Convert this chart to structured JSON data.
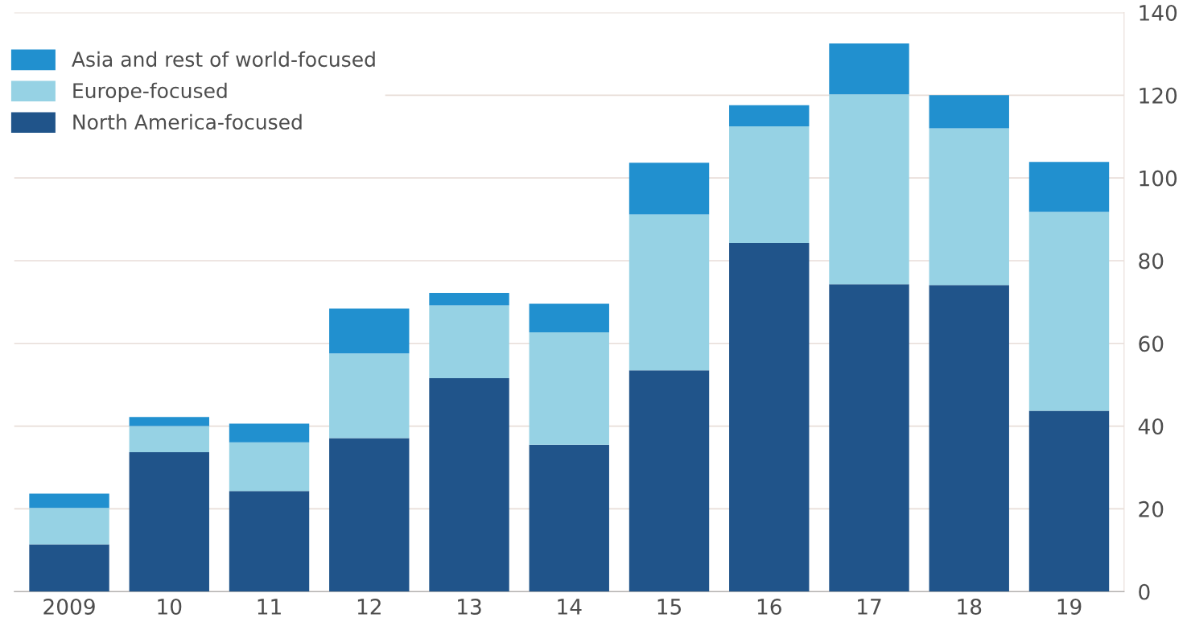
{
  "chart_data": {
    "type": "bar",
    "stacked": true,
    "categories": [
      "2009",
      "10",
      "11",
      "12",
      "13",
      "14",
      "15",
      "16",
      "17",
      "18",
      "19"
    ],
    "series": [
      {
        "name": "North America-focused",
        "color": "#20548a",
        "values": [
          11.4,
          33.7,
          24.3,
          37.1,
          51.6,
          35.5,
          53.5,
          84.3,
          74.3,
          74.1,
          43.7
        ]
      },
      {
        "name": "Europe-focused",
        "color": "#96d2e4",
        "values": [
          8.8,
          6.3,
          11.8,
          20.5,
          17.6,
          27.2,
          37.7,
          28.2,
          45.9,
          37.9,
          48.1
        ]
      },
      {
        "name": "Asia and rest of world-focused",
        "color": "#2190cf",
        "values": [
          3.5,
          2.2,
          4.5,
          10.8,
          3.0,
          6.9,
          12.5,
          5.1,
          12.3,
          8.0,
          12.1
        ]
      }
    ],
    "ylim": [
      0,
      140
    ],
    "yticks": [
      0,
      20,
      40,
      60,
      80,
      100,
      120,
      140
    ],
    "grid": "y",
    "legend": "top left"
  }
}
